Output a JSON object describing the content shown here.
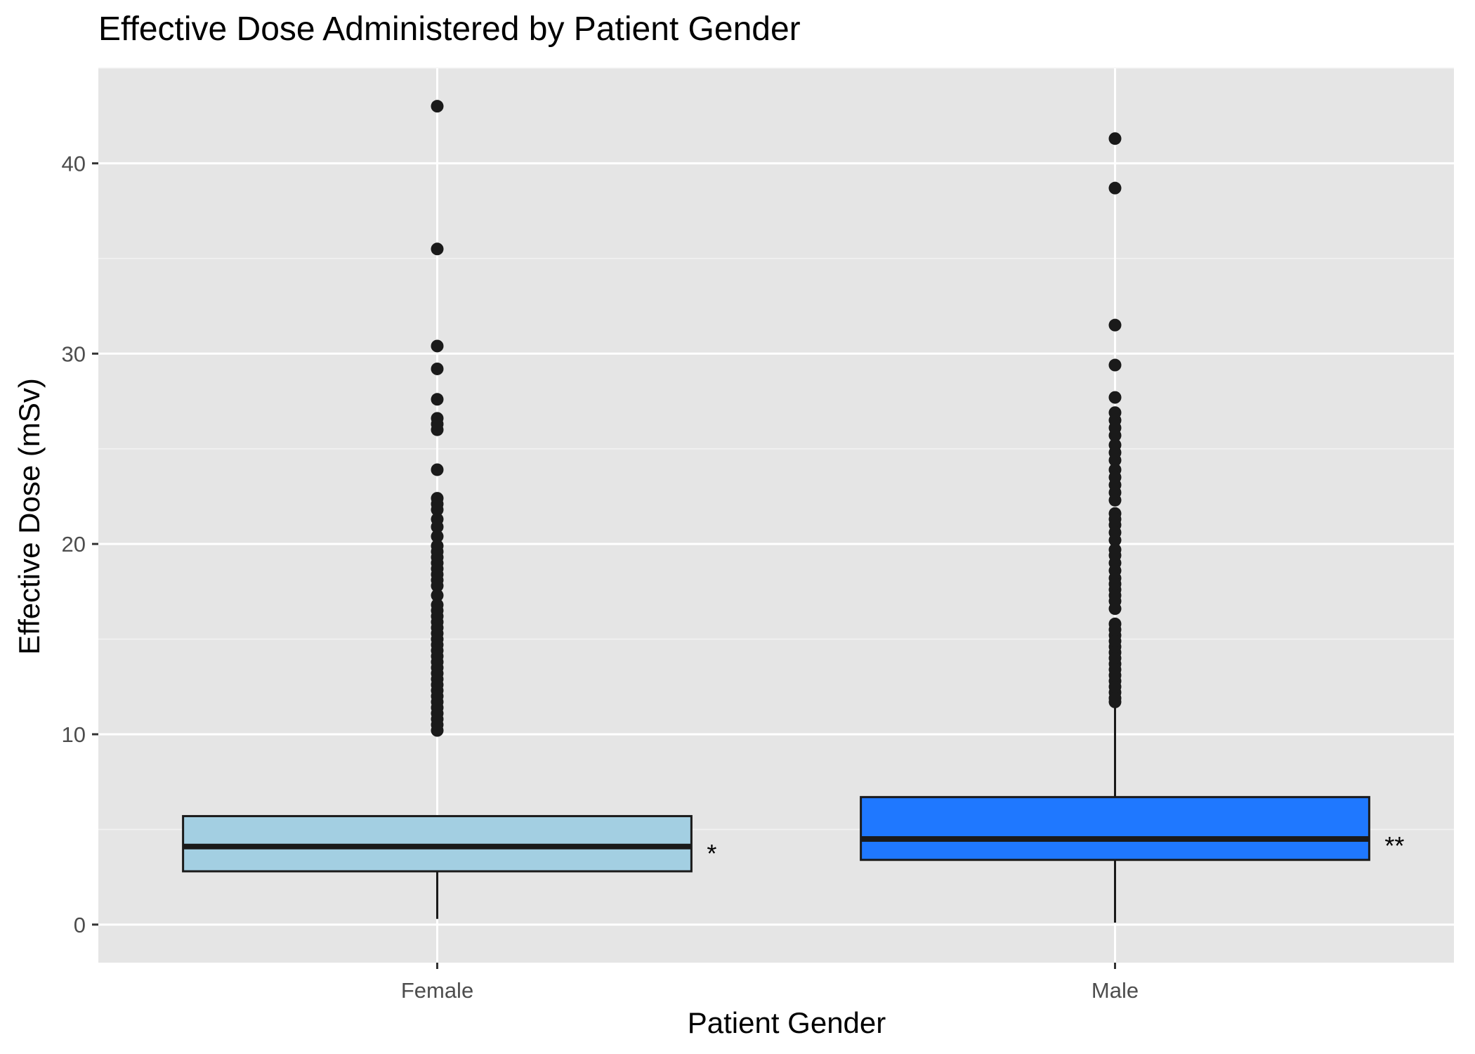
{
  "chart_data": {
    "type": "boxplot",
    "title": "Effective Dose Administered by Patient Gender",
    "xlabel": "Patient Gender",
    "ylabel": "Effective Dose (mSv)",
    "categories": [
      "Female",
      "Male"
    ],
    "ylim": [
      -2,
      45
    ],
    "yticks": [
      0,
      10,
      20,
      30,
      40
    ],
    "grid": true,
    "legend": "none",
    "boxes": [
      {
        "category": "Female",
        "color": "#A3CFE2",
        "min": 0.3,
        "q1": 2.8,
        "median": 4.1,
        "q3": 5.7,
        "whisker_high": 5.7,
        "annotation": "*",
        "outliers": [
          43.0,
          35.5,
          30.4,
          29.2,
          27.6,
          26.6,
          26.3,
          26.0,
          23.9,
          22.4,
          22.1,
          21.8,
          21.3,
          20.9,
          20.4,
          19.9,
          19.6,
          19.3,
          19.0,
          18.7,
          18.4,
          18.1,
          17.8,
          17.3,
          16.8,
          16.5,
          16.2,
          15.9,
          15.6,
          15.3,
          15.0,
          14.7,
          14.4,
          14.1,
          13.8,
          13.5,
          13.2,
          12.9,
          12.6,
          12.3,
          12.0,
          11.7,
          11.4,
          11.1,
          10.8,
          10.5,
          10.2
        ]
      },
      {
        "category": "Male",
        "color": "#1F78FF",
        "min": 0.1,
        "q1": 3.4,
        "median": 4.5,
        "q3": 6.7,
        "whisker_high": 11.6,
        "annotation": "**",
        "outliers": [
          41.3,
          38.7,
          31.5,
          29.4,
          27.7,
          26.9,
          26.5,
          26.1,
          25.7,
          25.2,
          24.8,
          24.4,
          23.9,
          23.5,
          23.1,
          22.7,
          22.3,
          21.6,
          21.3,
          21.0,
          20.6,
          20.2,
          19.7,
          19.4,
          19.0,
          18.6,
          18.2,
          17.9,
          17.6,
          17.3,
          17.0,
          16.6,
          15.8,
          15.5,
          15.2,
          14.9,
          14.6,
          14.3,
          14.0,
          13.7,
          13.4,
          13.1,
          12.8,
          12.5,
          12.2,
          11.9,
          11.7
        ]
      }
    ]
  }
}
